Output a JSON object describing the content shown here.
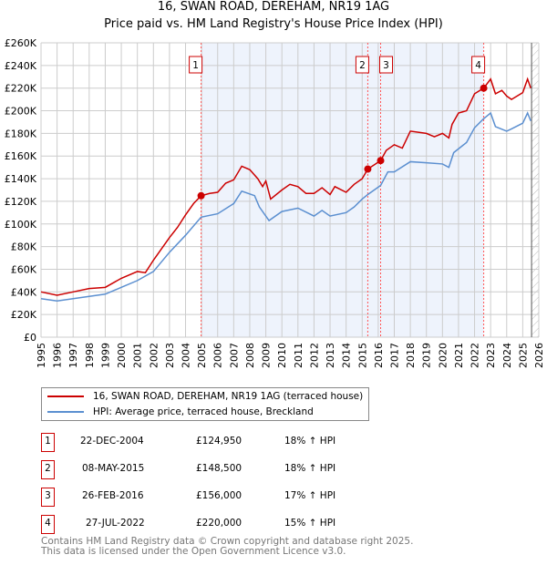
{
  "title": "16, SWAN ROAD, DEREHAM, NR19 1AG",
  "subtitle": "Price paid vs. HM Land Registry's House Price Index (HPI)",
  "colors": {
    "property": "#cc0000",
    "hpi": "#5b8fd0",
    "shade": "#eef3fc"
  },
  "legend": [
    {
      "label": "16, SWAN ROAD, DEREHAM, NR19 1AG (terraced house)"
    },
    {
      "label": "HPI: Average price, terraced house, Breckland"
    }
  ],
  "transactions": [
    {
      "num": "1",
      "date": "22-DEC-2004",
      "price": "£124,950",
      "hpi": "18% ↑ HPI"
    },
    {
      "num": "2",
      "date": "08-MAY-2015",
      "price": "£148,500",
      "hpi": "18% ↑ HPI"
    },
    {
      "num": "3",
      "date": "26-FEB-2016",
      "price": "£156,000",
      "hpi": "17% ↑ HPI"
    },
    {
      "num": "4",
      "date": "27-JUL-2022",
      "price": "£220,000",
      "hpi": "15% ↑ HPI"
    }
  ],
  "footer": [
    "Contains HM Land Registry data © Crown copyright and database right 2025.",
    "This data is licensed under the Open Government Licence v3.0."
  ],
  "chart_data": {
    "type": "line",
    "title": "16, SWAN ROAD, DEREHAM, NR19 1AG",
    "xlim": [
      1995,
      2026
    ],
    "ylim": [
      0,
      260000
    ],
    "xticks": [
      1995,
      1996,
      1997,
      1998,
      1999,
      2000,
      2001,
      2002,
      2003,
      2004,
      2005,
      2006,
      2007,
      2008,
      2009,
      2010,
      2011,
      2012,
      2013,
      2014,
      2015,
      2016,
      2017,
      2018,
      2019,
      2020,
      2021,
      2022,
      2023,
      2024,
      2025,
      2026
    ],
    "yticks": [
      {
        "v": 0,
        "l": "£0"
      },
      {
        "v": 20000,
        "l": "£20K"
      },
      {
        "v": 40000,
        "l": "£40K"
      },
      {
        "v": 60000,
        "l": "£60K"
      },
      {
        "v": 80000,
        "l": "£80K"
      },
      {
        "v": 100000,
        "l": "£100K"
      },
      {
        "v": 120000,
        "l": "£120K"
      },
      {
        "v": 140000,
        "l": "£140K"
      },
      {
        "v": 160000,
        "l": "£160K"
      },
      {
        "v": 180000,
        "l": "£180K"
      },
      {
        "v": 200000,
        "l": "£200K"
      },
      {
        "v": 220000,
        "l": "£220K"
      },
      {
        "v": 240000,
        "l": "£240K"
      },
      {
        "v": 260000,
        "l": "£260K"
      }
    ],
    "grid": true,
    "series": [
      {
        "name": "16, SWAN ROAD, DEREHAM, NR19 1AG (terraced house)",
        "x": [
          1995,
          1996,
          1997,
          1998,
          1999,
          2000,
          2001,
          2001.5,
          2002,
          2003,
          2003.5,
          2004,
          2004.5,
          2004.97,
          2005.5,
          2006,
          2006.5,
          2007,
          2007.5,
          2008,
          2008.5,
          2008.8,
          2009,
          2009.3,
          2010,
          2010.5,
          2011,
          2011.5,
          2012,
          2012.5,
          2013,
          2013.3,
          2014,
          2014.5,
          2015,
          2015.35,
          2016.15,
          2016.5,
          2017,
          2017.5,
          2018,
          2019,
          2019.5,
          2020,
          2020.4,
          2020.6,
          2021,
          2021.5,
          2022,
          2022.57,
          2023,
          2023.3,
          2023.7,
          2024,
          2024.3,
          2025,
          2025.3,
          2025.5
        ],
        "y": [
          40000,
          37000,
          40000,
          43000,
          44000,
          52000,
          58000,
          57000,
          68000,
          88000,
          97000,
          108000,
          118000,
          124950,
          127000,
          128000,
          136000,
          139000,
          151000,
          148000,
          140000,
          133000,
          138000,
          122000,
          130000,
          135000,
          133000,
          127000,
          127000,
          132000,
          126000,
          133000,
          128000,
          135000,
          140000,
          148500,
          156000,
          165000,
          170000,
          167000,
          182000,
          180000,
          177000,
          180000,
          176000,
          188000,
          198000,
          200000,
          215000,
          220000,
          228000,
          215000,
          218000,
          213000,
          210000,
          216000,
          228000,
          220000
        ]
      },
      {
        "name": "HPI: Average price, terraced house, Breckland",
        "x": [
          1995,
          1996,
          1997,
          1998,
          1999,
          2000,
          2001,
          2002,
          2003,
          2004,
          2004.97,
          2006,
          2007,
          2007.5,
          2008.3,
          2008.6,
          2009.2,
          2010,
          2011,
          2012,
          2012.5,
          2013,
          2014,
          2014.5,
          2015,
          2015.35,
          2016.15,
          2016.6,
          2017,
          2018,
          2019,
          2020,
          2020.4,
          2020.7,
          2021.5,
          2022,
          2022.57,
          2023,
          2023.3,
          2024,
          2024.3,
          2025,
          2025.3,
          2025.5
        ],
        "y": [
          34000,
          32000,
          34000,
          36000,
          38000,
          44000,
          50000,
          58000,
          75000,
          90000,
          106000,
          109000,
          118000,
          129000,
          125000,
          115000,
          103000,
          111000,
          114000,
          107000,
          112000,
          107000,
          110000,
          115000,
          122000,
          126000,
          134000,
          146000,
          146000,
          155000,
          154000,
          153000,
          150000,
          163000,
          172000,
          185000,
          193000,
          198000,
          186000,
          182000,
          184000,
          189000,
          198000,
          191000
        ]
      }
    ],
    "sales": [
      {
        "label": "1",
        "x": 2004.97,
        "y": 124950
      },
      {
        "label": "2",
        "x": 2015.35,
        "y": 148500
      },
      {
        "label": "3",
        "x": 2016.15,
        "y": 156000
      },
      {
        "label": "4",
        "x": 2022.57,
        "y": 220000
      }
    ],
    "shaded_range": [
      2004.97,
      2022.57
    ],
    "forecast_from": 2025.55
  }
}
